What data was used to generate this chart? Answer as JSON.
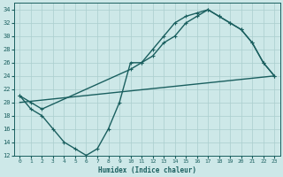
{
  "xlabel": "Humidex (Indice chaleur)",
  "bg_color": "#cde8e8",
  "grid_color": "#aacece",
  "line_color": "#1a5f5f",
  "xlim": [
    -0.5,
    23.5
  ],
  "ylim": [
    12,
    35
  ],
  "xticks": [
    0,
    1,
    2,
    3,
    4,
    5,
    6,
    7,
    8,
    9,
    10,
    11,
    12,
    13,
    14,
    15,
    16,
    17,
    18,
    19,
    20,
    21,
    22,
    23
  ],
  "yticks": [
    12,
    14,
    16,
    18,
    20,
    22,
    24,
    26,
    28,
    30,
    32,
    34
  ],
  "line1_x": [
    0,
    1,
    2,
    3,
    4,
    5,
    6,
    7,
    8,
    9,
    10,
    11,
    12,
    13,
    14,
    15,
    16,
    17,
    18,
    19,
    20,
    21,
    22,
    23
  ],
  "line1_y": [
    21,
    19,
    18,
    16,
    14,
    13,
    12,
    13,
    16,
    20,
    26,
    26,
    28,
    30,
    32,
    33,
    33.5,
    34,
    33,
    32,
    31,
    29,
    26,
    24
  ],
  "line2_x": [
    0,
    1,
    2,
    10,
    11,
    12,
    13,
    14,
    15,
    16,
    17,
    18,
    19,
    20,
    21,
    22,
    23
  ],
  "line2_y": [
    21,
    20,
    19,
    25,
    26,
    27,
    29,
    30,
    32,
    33,
    34,
    33,
    32,
    31,
    29,
    26,
    24
  ],
  "line3_x": [
    0,
    23
  ],
  "line3_y": [
    20,
    24
  ],
  "marker_size": 3.0,
  "linewidth": 1.0
}
